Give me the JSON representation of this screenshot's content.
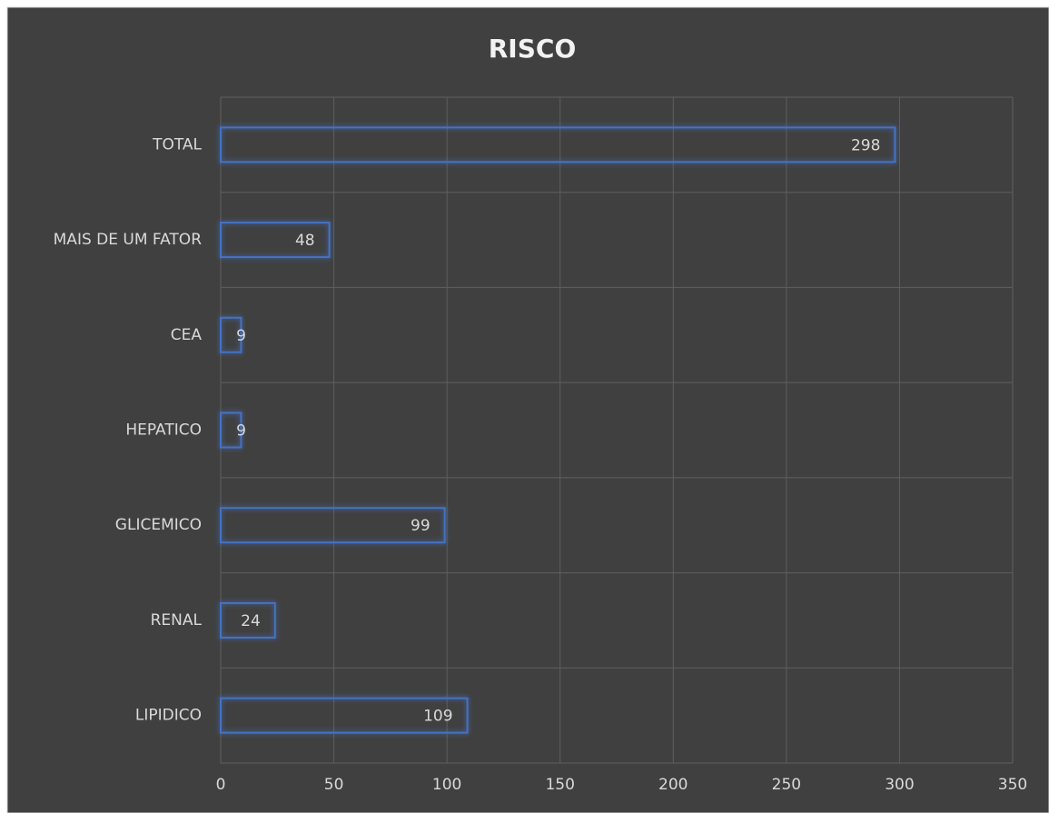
{
  "chart_data": {
    "type": "hbar",
    "title": "RISCO",
    "categories": [
      "TOTAL",
      "MAIS DE UM FATOR",
      "CEA",
      "HEPATICO",
      "GLICEMICO",
      "RENAL",
      "LIPIDICO"
    ],
    "values": [
      298,
      48,
      9,
      9,
      99,
      24,
      109
    ],
    "color": "#4472c4",
    "xlim": [
      0,
      350
    ],
    "xticks": [
      0,
      50,
      100,
      150,
      200,
      250,
      300,
      350
    ],
    "grid": true
  }
}
